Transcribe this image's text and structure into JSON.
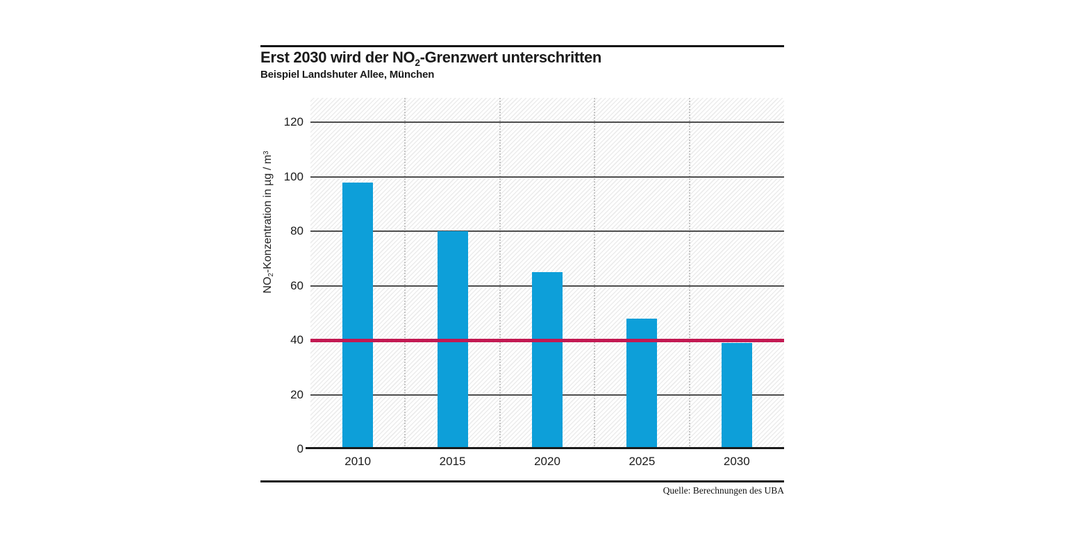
{
  "header": {
    "title_pre": "Erst 2030 wird der NO",
    "title_sub": "2",
    "title_post": "-Grenzwert unterschritten",
    "subtitle": "Beispiel Landshuter Allee, München"
  },
  "chart_data": {
    "type": "bar",
    "categories": [
      "2010",
      "2015",
      "2020",
      "2025",
      "2030"
    ],
    "values": [
      98,
      80,
      65,
      48,
      39
    ],
    "title": "Erst 2030 wird der NO2-Grenzwert unterschritten",
    "subtitle": "Beispiel Landshuter Allee, München",
    "xlabel": "",
    "ylabel_pre": "NO",
    "ylabel_sub": "2",
    "ylabel_mid": "-Konzentration in µg / m",
    "ylabel_sup": "3",
    "yticks": [
      0,
      20,
      40,
      60,
      80,
      100,
      120
    ],
    "ylim": [
      0,
      129
    ],
    "bar_color": "#0d9fd9",
    "limit_line": {
      "value": 40,
      "color": "#c31952"
    },
    "grid": {
      "horizontal": "solid",
      "vertical": "dotted"
    },
    "legend": "none"
  },
  "footer": {
    "source": "Quelle: Berechnungen des UBA"
  }
}
